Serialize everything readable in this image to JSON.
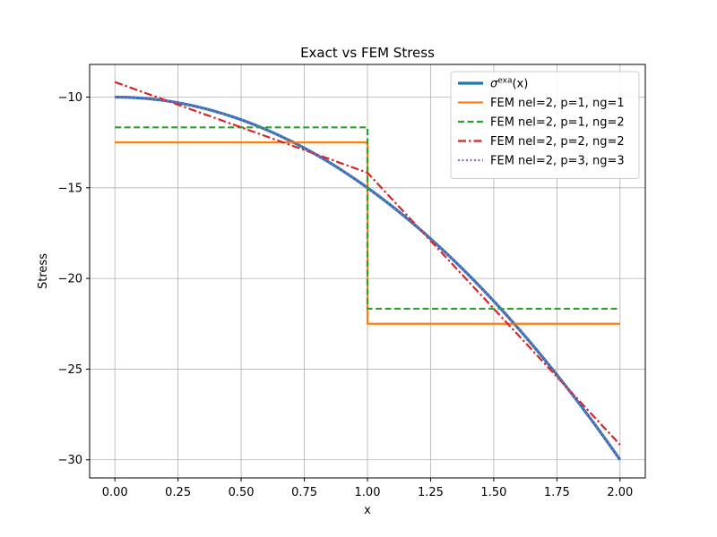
{
  "chart_data": {
    "type": "line",
    "title": "Exact vs FEM Stress",
    "xlabel": "x",
    "ylabel": "Stress",
    "xlim": [
      -0.1,
      2.1
    ],
    "ylim": [
      -31.0,
      -8.2
    ],
    "xticks": [
      0.0,
      0.25,
      0.5,
      0.75,
      1.0,
      1.25,
      1.5,
      1.75,
      2.0
    ],
    "xtick_labels": [
      "0.00",
      "0.25",
      "0.50",
      "0.75",
      "1.00",
      "1.25",
      "1.50",
      "1.75",
      "2.00"
    ],
    "yticks": [
      -30,
      -25,
      -20,
      -15,
      -10
    ],
    "ytick_labels": [
      "−30",
      "−25",
      "−20",
      "−15",
      "−10"
    ],
    "grid": true,
    "legend_position": "top-right",
    "series": [
      {
        "name": "σ^exa(x)",
        "name_base": "σ",
        "name_sup": "exa",
        "name_suffix": "(x)",
        "color": "#1f77b4",
        "style": "solid",
        "width": "thick",
        "x": [
          0.0,
          0.25,
          0.5,
          0.75,
          1.0,
          1.25,
          1.5,
          1.75,
          2.0
        ],
        "y": [
          -10.0,
          -10.3125,
          -11.25,
          -12.8125,
          -15.0,
          -17.8125,
          -21.25,
          -25.3125,
          -30.0
        ]
      },
      {
        "name": "FEM nel=2, p=1, ng=1",
        "color": "#ff7f0e",
        "style": "solid",
        "x": [
          0.0,
          1.0,
          1.0,
          2.0
        ],
        "y": [
          -12.5,
          -12.5,
          -22.5,
          -22.5
        ]
      },
      {
        "name": "FEM nel=2, p=1, ng=2",
        "color": "#2ca02c",
        "style": "dashed",
        "x": [
          0.0,
          1.0,
          1.0,
          2.0
        ],
        "y": [
          -11.67,
          -11.67,
          -21.67,
          -21.67
        ]
      },
      {
        "name": "FEM nel=2, p=2, ng=2",
        "color": "#d62728",
        "style": "dashdot",
        "x": [
          0.0,
          0.25,
          0.5,
          0.75,
          1.0,
          1.0,
          1.25,
          1.5,
          1.75,
          2.0
        ],
        "y": [
          -9.17,
          -10.42,
          -11.67,
          -12.92,
          -14.17,
          -14.17,
          -17.92,
          -21.67,
          -25.42,
          -29.17
        ]
      },
      {
        "name": "FEM nel=2, p=3, ng=3",
        "color": "#9467bd",
        "style": "dotted",
        "x": [
          0.0,
          0.25,
          0.5,
          0.75,
          1.0,
          1.25,
          1.5,
          1.75,
          2.0
        ],
        "y": [
          -10.0,
          -10.3125,
          -11.25,
          -12.8125,
          -15.0,
          -17.8125,
          -21.25,
          -25.3125,
          -30.0
        ]
      }
    ]
  }
}
